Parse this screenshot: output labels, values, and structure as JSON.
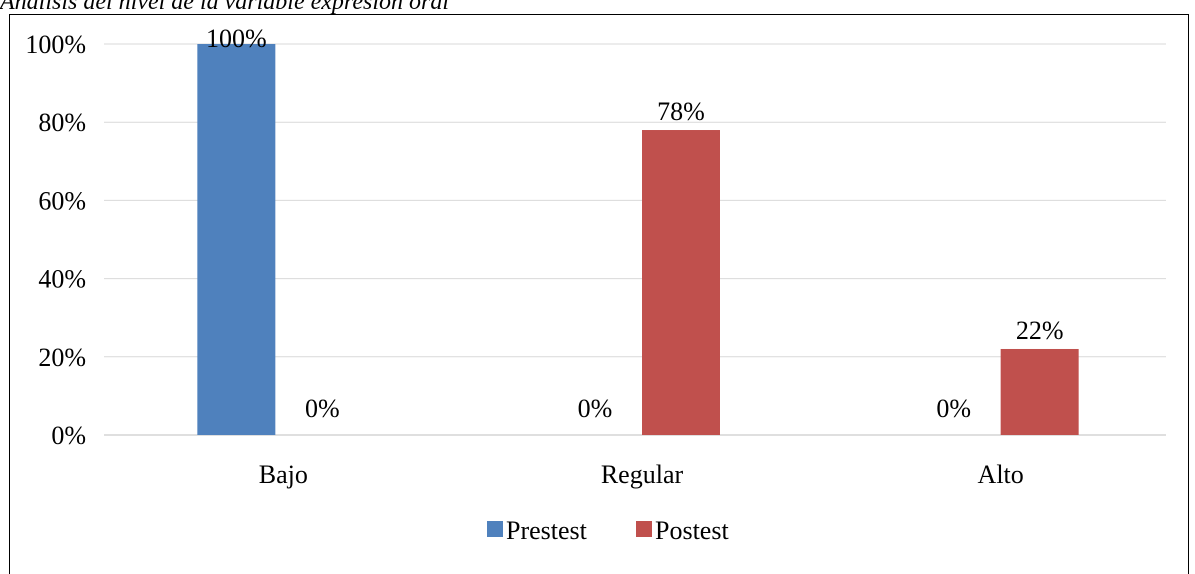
{
  "title": "Análisis del nivel de la variable expresión oral",
  "chart_data": {
    "type": "bar",
    "categories": [
      "Bajo",
      "Regular",
      "Alto"
    ],
    "series": [
      {
        "name": "Prestest",
        "values": [
          100,
          0,
          0
        ],
        "labels": [
          "100%",
          "0%",
          "0%"
        ],
        "color": "#4F81BD"
      },
      {
        "name": "Postest",
        "values": [
          0,
          78,
          22
        ],
        "labels": [
          "0%",
          "78%",
          "22%"
        ],
        "color": "#C0504D"
      }
    ],
    "ylim": [
      0,
      100
    ],
    "yticks": [
      "0%",
      "20%",
      "40%",
      "60%",
      "80%",
      "100%"
    ],
    "grid": true,
    "legend": "bottom"
  }
}
